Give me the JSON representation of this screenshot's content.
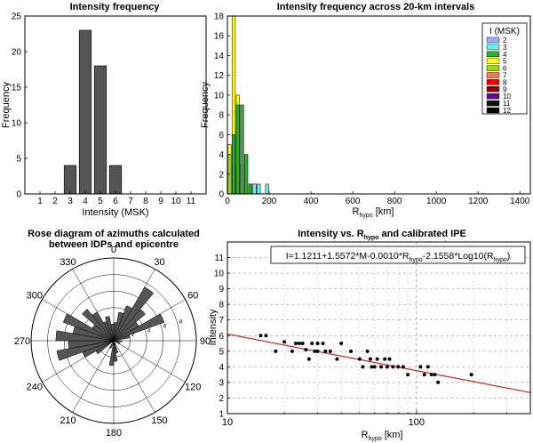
{
  "chart_data": [
    {
      "type": "bar",
      "title": "Intensity frequency",
      "xlabel": "Intensity (MSK)",
      "ylabel": "Frequency",
      "x_ticks": [
        "1",
        "2",
        "3",
        "4",
        "5",
        "6",
        "7",
        "8",
        "9",
        "10",
        "11"
      ],
      "y_ticks": [
        "0",
        "5",
        "10",
        "15",
        "20",
        "25"
      ],
      "xlim": [
        0,
        12
      ],
      "ylim": [
        0,
        25
      ],
      "x": [
        3,
        4,
        5,
        6
      ],
      "values": [
        4,
        23,
        18,
        4
      ],
      "bar_color": "#555555"
    },
    {
      "type": "bar",
      "title": "Intensity frequency across 20-km intervals",
      "xlabel_main": "R",
      "xlabel_sub": "hypo",
      "xlabel_unit": " [km]",
      "ylabel": "Frequency",
      "x_ticks": [
        "0",
        "200",
        "400",
        "600",
        "800",
        "1000",
        "1200",
        "1400"
      ],
      "y_ticks": [
        "0",
        "2",
        "4",
        "6",
        "8",
        "10",
        "12",
        "14",
        "16",
        "18"
      ],
      "xlim": [
        0,
        1450
      ],
      "ylim": [
        0,
        18
      ],
      "bin_width": 20,
      "legend_title": "I (MSK)",
      "legend_position": "top-right",
      "legend": [
        {
          "name": "2",
          "color": "#99aaff"
        },
        {
          "name": "3",
          "color": "#66eeee"
        },
        {
          "name": "4",
          "color": "#33aa33"
        },
        {
          "name": "5",
          "color": "#ffff00"
        },
        {
          "name": "6",
          "color": "#99dd00"
        },
        {
          "name": "7",
          "color": "#ff7744"
        },
        {
          "name": "8",
          "color": "#ee0000"
        },
        {
          "name": "9",
          "color": "#880000"
        },
        {
          "name": "10",
          "color": "#551188"
        },
        {
          "name": "11",
          "color": "#111111"
        },
        {
          "name": "12",
          "color": "#000000"
        }
      ],
      "series": [
        {
          "intensity": "5",
          "color": "#ffff00",
          "bars": [
            {
              "bin": 0,
              "value": 5
            },
            {
              "bin": 20,
              "value": 18
            },
            {
              "bin": 40,
              "value": 10
            },
            {
              "bin": 60,
              "value": 3
            }
          ]
        },
        {
          "intensity": "6",
          "color": "#99dd00",
          "bars": [
            {
              "bin": 0,
              "value": 4
            },
            {
              "bin": 20,
              "value": 3
            },
            {
              "bin": 40,
              "value": 1
            }
          ]
        },
        {
          "intensity": "4",
          "color": "#33aa33",
          "bars": [
            {
              "bin": 20,
              "value": 6
            },
            {
              "bin": 40,
              "value": 9
            },
            {
              "bin": 60,
              "value": 9
            },
            {
              "bin": 80,
              "value": 4
            },
            {
              "bin": 100,
              "value": 1
            },
            {
              "bin": 120,
              "value": 1
            }
          ]
        },
        {
          "intensity": "3",
          "color": "#66eeee",
          "bars": [
            {
              "bin": 120,
              "value": 1
            },
            {
              "bin": 140,
              "value": 1
            },
            {
              "bin": 180,
              "value": 1
            }
          ]
        }
      ]
    },
    {
      "type": "rose",
      "title_line1": "Rose diagram of azimuths calculated",
      "title_line2": "between  IDPs and epicentre",
      "angle_labels": [
        {
          "deg": 0,
          "text": "0"
        },
        {
          "deg": 30,
          "text": "30"
        },
        {
          "deg": 60,
          "text": "60"
        },
        {
          "deg": 90,
          "text": "90"
        },
        {
          "deg": 120,
          "text": "120"
        },
        {
          "deg": 150,
          "text": "150"
        },
        {
          "deg": 180,
          "text": "180"
        },
        {
          "deg": 210,
          "text": "210"
        },
        {
          "deg": 240,
          "text": "240"
        },
        {
          "deg": 270,
          "text": "270"
        },
        {
          "deg": 300,
          "text": "300"
        },
        {
          "deg": 330,
          "text": "330"
        }
      ],
      "radial_ticks": [
        "2",
        "4",
        "6",
        "8"
      ],
      "rmax": 10,
      "sector_width_deg": 10,
      "petals": [
        {
          "az": 5,
          "r": 2.2
        },
        {
          "az": 15,
          "r": 3.5
        },
        {
          "az": 25,
          "r": 4.5
        },
        {
          "az": 35,
          "r": 7.5
        },
        {
          "az": 45,
          "r": 5.0
        },
        {
          "az": 55,
          "r": 3.5
        },
        {
          "az": 65,
          "r": 6.5
        },
        {
          "az": 75,
          "r": 2.0
        },
        {
          "az": 95,
          "r": 1.0
        },
        {
          "az": 115,
          "r": 0.8
        },
        {
          "az": 165,
          "r": 1.5
        },
        {
          "az": 175,
          "r": 2.5
        },
        {
          "az": 185,
          "r": 3.0
        },
        {
          "az": 205,
          "r": 1.0
        },
        {
          "az": 235,
          "r": 2.5
        },
        {
          "az": 245,
          "r": 4.0
        },
        {
          "az": 255,
          "r": 7.0
        },
        {
          "az": 265,
          "r": 5.5
        },
        {
          "az": 275,
          "r": 7.0
        },
        {
          "az": 285,
          "r": 5.0
        },
        {
          "az": 295,
          "r": 6.5
        },
        {
          "az": 305,
          "r": 3.0
        },
        {
          "az": 315,
          "r": 5.0
        },
        {
          "az": 325,
          "r": 4.0
        },
        {
          "az": 335,
          "r": 2.5
        },
        {
          "az": 345,
          "r": 3.0
        },
        {
          "az": 355,
          "r": 2.0
        }
      ],
      "petal_color": "#555555"
    },
    {
      "type": "scatter",
      "title_pre": "Intensity vs. R",
      "title_sub": "hypo",
      "title_post": " and calibrated IPE",
      "xlabel_main": "R",
      "xlabel_sub": "hypo",
      "xlabel_unit": " [km]",
      "ylabel": "Intensity",
      "x_scale": "log",
      "xlim": [
        10,
        400
      ],
      "ylim": [
        1,
        12
      ],
      "x_ticks": [
        {
          "v": 10,
          "t": "10"
        },
        {
          "v": 100,
          "t": "100"
        }
      ],
      "y_ticks": [
        "1",
        "2",
        "3",
        "4",
        "5",
        "6",
        "7",
        "8",
        "9",
        "10",
        "11"
      ],
      "equation_parts": [
        {
          "t": "I=1.1211+1.5572*M-0.0010*R",
          "sub": false
        },
        {
          "t": "hypo",
          "sub": true
        },
        {
          "t": "-2.1558*Log10(R",
          "sub": false
        },
        {
          "t": "hypo",
          "sub": true
        },
        {
          "t": ")",
          "sub": false
        }
      ],
      "fit_line": {
        "x": [
          10,
          400
        ],
        "y": [
          6.1,
          2.35
        ],
        "color": "#dd2222"
      },
      "points": [
        [
          15,
          6
        ],
        [
          16,
          6
        ],
        [
          18,
          5
        ],
        [
          20,
          5.6
        ],
        [
          22,
          5
        ],
        [
          23,
          5.5
        ],
        [
          24,
          5.5
        ],
        [
          25,
          5.5
        ],
        [
          26,
          5.1
        ],
        [
          27,
          4.5
        ],
        [
          28,
          5.5
        ],
        [
          29,
          5
        ],
        [
          30,
          5.5
        ],
        [
          30,
          5
        ],
        [
          32,
          5.5
        ],
        [
          33,
          5
        ],
        [
          35,
          5
        ],
        [
          38,
          4.5
        ],
        [
          40,
          5.5
        ],
        [
          45,
          5
        ],
        [
          50,
          4.5
        ],
        [
          52,
          4
        ],
        [
          55,
          5
        ],
        [
          57,
          4.5
        ],
        [
          58,
          4
        ],
        [
          60,
          4
        ],
        [
          62,
          4.5
        ],
        [
          65,
          4
        ],
        [
          68,
          4.5
        ],
        [
          70,
          4
        ],
        [
          72,
          4.5
        ],
        [
          75,
          4
        ],
        [
          80,
          4
        ],
        [
          85,
          4
        ],
        [
          90,
          3.5
        ],
        [
          105,
          4
        ],
        [
          110,
          3.5
        ],
        [
          115,
          4
        ],
        [
          120,
          3.5
        ],
        [
          125,
          3.5
        ],
        [
          130,
          3
        ],
        [
          195,
          3.5
        ]
      ],
      "grid": true
    }
  ]
}
